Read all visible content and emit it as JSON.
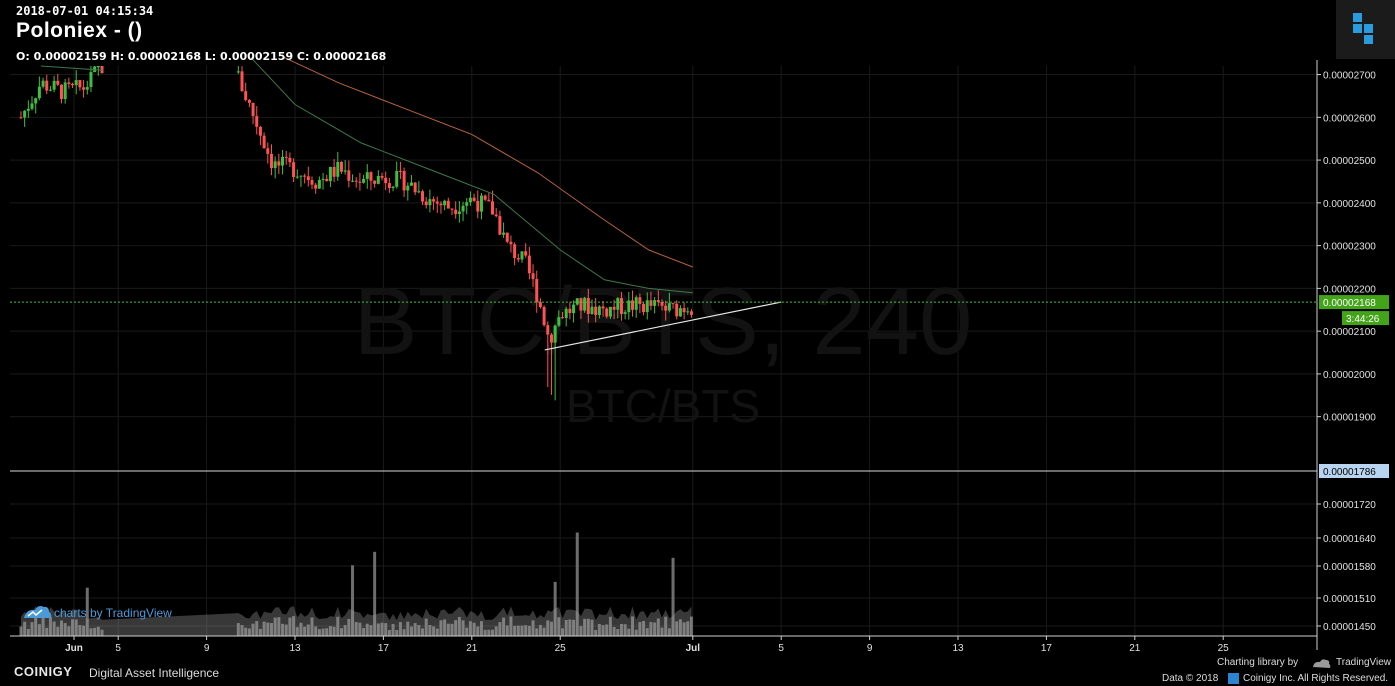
{
  "header": {
    "datetime": "2018-07-01 04:15:34",
    "title": "Poloniex -  ()",
    "ohlc": "O: 0.00002159 H: 0.00002168 L: 0.00002159 C: 0.00002168"
  },
  "watermark": {
    "main": "BTC/BTS, 240",
    "sub": "BTC/BTS"
  },
  "tradingview_watermark": "charts by TradingView",
  "footer": {
    "brand": "COINIGY",
    "tagline": "Digital Asset Intelligence",
    "charting_library": "Charting library by",
    "tradingview": "TradingView",
    "data_label": "Data © 2018",
    "copyright": "Coinigy Inc. All Rights Reserved."
  },
  "colors": {
    "up": "#3fbf3f",
    "down": "#ff5252",
    "ma_fast": "#3c7a4a",
    "ma_slow": "#b8613c",
    "last_price_bg": "#43a319",
    "crosshair_label_bg": "#b9d4f0",
    "trendline": "#e6e6e6"
  },
  "chart_data": {
    "type": "candlestick",
    "symbol": "BTC/BTS",
    "interval": "240",
    "price_axis": {
      "ticks": [
        "0.00002700",
        "0.00002600",
        "0.00002500",
        "0.00002400",
        "0.00002300",
        "0.00002200",
        "0.00002100",
        "0.00002000",
        "0.00001900"
      ],
      "last_price": "0.00002168",
      "countdown": "3:44:26",
      "crosshair_price": "0.00001786"
    },
    "volume_axis": {
      "ticks": [
        "0.00001720",
        "0.00001640",
        "0.00001580",
        "0.00001510",
        "0.00001450"
      ]
    },
    "time_axis": {
      "ticks": [
        "Jun",
        "5",
        "9",
        "13",
        "17",
        "21",
        "25",
        "Jul",
        "5",
        "9",
        "13",
        "17",
        "21",
        "25"
      ]
    },
    "trendline": {
      "from": [
        "Jun 24",
        2.056e-05
      ],
      "to": [
        "Jul 5",
        2.168e-05
      ]
    },
    "legend": "none"
  }
}
